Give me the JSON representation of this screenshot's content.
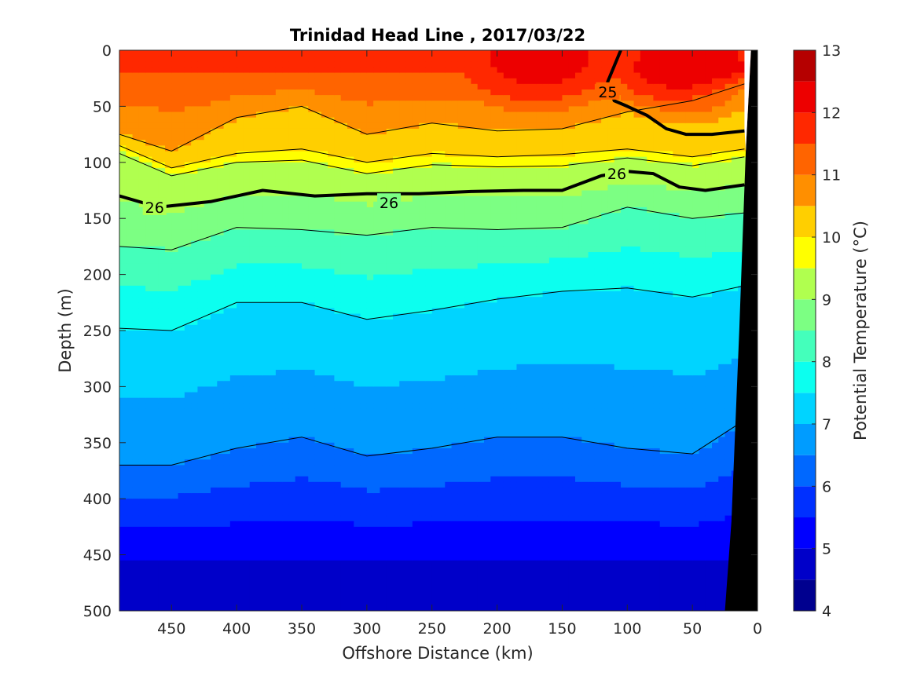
{
  "chart_data": {
    "type": "heatmap",
    "title": "Trinidad Head Line , 2017/03/22",
    "xlabel": "Offshore Distance (km)",
    "ylabel": "Depth (m)",
    "xlim": [
      490,
      0
    ],
    "ylim": [
      500,
      0
    ],
    "x_ticks": [
      "450",
      "400",
      "350",
      "300",
      "250",
      "200",
      "150",
      "100",
      "50",
      "0"
    ],
    "x_tick_values": [
      450,
      400,
      350,
      300,
      250,
      200,
      150,
      100,
      50,
      0
    ],
    "y_ticks": [
      "0",
      "50",
      "100",
      "150",
      "200",
      "250",
      "300",
      "350",
      "400",
      "450",
      "500"
    ],
    "y_tick_values": [
      0,
      50,
      100,
      150,
      200,
      250,
      300,
      350,
      400,
      450,
      500
    ],
    "colorbar": {
      "label": "Potential Temperature (°C)",
      "ticks": [
        "4",
        "5",
        "6",
        "7",
        "8",
        "9",
        "10",
        "11",
        "12",
        "13"
      ],
      "tick_values": [
        4,
        5,
        6,
        7,
        8,
        9,
        10,
        11,
        12,
        13
      ],
      "levels": [
        4,
        4.5,
        5,
        5.5,
        6,
        6.5,
        7,
        7.5,
        8,
        8.5,
        9,
        9.5,
        10,
        10.5,
        11,
        11.5,
        12,
        12.5,
        13
      ],
      "colors": [
        "#00008f",
        "#0000c9",
        "#0000ff",
        "#0030ff",
        "#0068ff",
        "#009cff",
        "#00d4ff",
        "#0cffef",
        "#44ffbb",
        "#7cff83",
        "#b0ff4f",
        "#ffff00",
        "#ffcf00",
        "#ff8f00",
        "#ff6400",
        "#ff2800",
        "#ed0000",
        "#b50000"
      ]
    },
    "isotherms": [
      {
        "name": "10.5",
        "x": [
          490,
          450,
          400,
          350,
          300,
          250,
          200,
          150,
          100,
          50,
          10
        ],
        "y": [
          75,
          90,
          60,
          50,
          75,
          65,
          72,
          70,
          55,
          45,
          30
        ]
      },
      {
        "name": "10",
        "x": [
          490,
          450,
          400,
          350,
          300,
          250,
          200,
          150,
          100,
          50,
          10
        ],
        "y": [
          85,
          105,
          92,
          88,
          100,
          92,
          95,
          93,
          88,
          95,
          88
        ]
      },
      {
        "name": "9.5",
        "x": [
          490,
          450,
          400,
          350,
          300,
          250,
          200,
          150,
          100,
          50,
          10
        ],
        "y": [
          92,
          112,
          100,
          98,
          110,
          102,
          104,
          103,
          96,
          103,
          95
        ]
      },
      {
        "name": "8.5",
        "x": [
          490,
          450,
          400,
          350,
          300,
          250,
          200,
          150,
          100,
          50,
          10
        ],
        "y": [
          175,
          178,
          158,
          160,
          165,
          158,
          160,
          158,
          140,
          150,
          145
        ]
      },
      {
        "name": "7.5",
        "x": [
          490,
          450,
          400,
          350,
          300,
          250,
          200,
          150,
          100,
          50,
          10
        ],
        "y": [
          248,
          250,
          225,
          225,
          240,
          232,
          222,
          215,
          212,
          220,
          210
        ]
      },
      {
        "name": "6.5",
        "x": [
          490,
          450,
          400,
          350,
          300,
          250,
          200,
          150,
          100,
          50,
          10
        ],
        "y": [
          370,
          370,
          355,
          345,
          362,
          355,
          345,
          345,
          355,
          360,
          330
        ]
      }
    ],
    "labeled_contours": [
      {
        "label": "26",
        "x": [
          490,
          460,
          420,
          380,
          340,
          300,
          260,
          220,
          180,
          150,
          120,
          100,
          80,
          60,
          40,
          10
        ],
        "y": [
          130,
          140,
          135,
          125,
          130,
          128,
          128,
          126,
          125,
          125,
          112,
          108,
          110,
          122,
          125,
          120
        ],
        "label_at": [
          {
            "x": 463,
            "y": 140
          },
          {
            "x": 283,
            "y": 136
          },
          {
            "x": 108,
            "y": 110
          }
        ]
      },
      {
        "label": "25",
        "x": [
          105,
          115,
          110,
          100,
          85,
          70,
          55,
          35,
          10
        ],
        "y": [
          0,
          28,
          45,
          50,
          58,
          70,
          75,
          75,
          72
        ],
        "label_at": [
          {
            "x": 115,
            "y": 37
          }
        ]
      }
    ],
    "regions_note": "Black area on the right shows the seafloor near the coast"
  }
}
